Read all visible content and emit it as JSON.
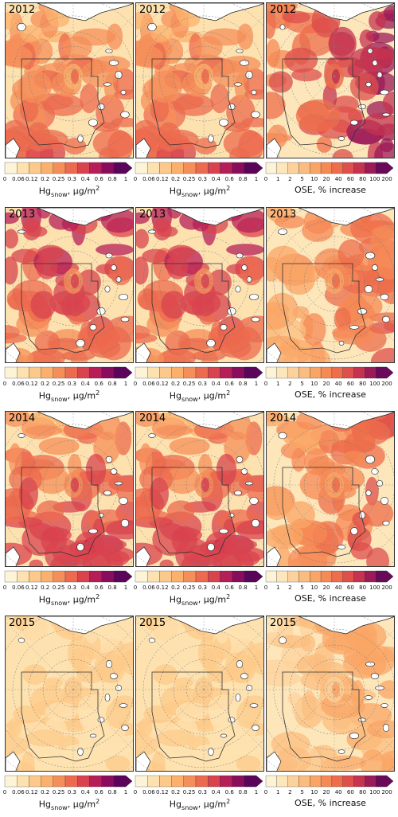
{
  "rows": [
    {
      "year": "2012",
      "panels": [
        {
          "kind": "hg",
          "intensity": 0.55,
          "tint": "south"
        },
        {
          "kind": "hg",
          "intensity": 0.55,
          "tint": "south"
        },
        {
          "kind": "ose",
          "intensity": 0.8,
          "tint": "east"
        }
      ]
    },
    {
      "year": "2013",
      "panels": [
        {
          "kind": "hg",
          "intensity": 0.7,
          "tint": "north"
        },
        {
          "kind": "hg",
          "intensity": 0.7,
          "tint": "north"
        },
        {
          "kind": "ose",
          "intensity": 0.55,
          "tint": "east"
        }
      ]
    },
    {
      "year": "2014",
      "panels": [
        {
          "kind": "hg",
          "intensity": 0.65,
          "tint": "south"
        },
        {
          "kind": "hg",
          "intensity": 0.65,
          "tint": "south"
        },
        {
          "kind": "ose",
          "intensity": 0.6,
          "tint": "east"
        }
      ]
    },
    {
      "year": "2015",
      "panels": [
        {
          "kind": "hg",
          "intensity": 0.25,
          "tint": "light"
        },
        {
          "kind": "hg",
          "intensity": 0.25,
          "tint": "light"
        },
        {
          "kind": "ose",
          "intensity": 0.35,
          "tint": "east"
        }
      ]
    }
  ],
  "hg_colorbar": {
    "ticks": [
      "0",
      "0.06",
      "0.12",
      "0.2",
      "0.25",
      "0.3",
      "0.4",
      "0.6",
      "0.8",
      "1"
    ],
    "colors": [
      "#fdf3d6",
      "#fde2b0",
      "#fcc98a",
      "#fbb06c",
      "#f58f5a",
      "#ec6a4e",
      "#d9434e",
      "#b51e57",
      "#8a0c5c",
      "#5a045a"
    ],
    "label_main": "Hg",
    "label_sub": "snow",
    "label_unit": ",  μg/m",
    "label_sup": "2"
  },
  "ose_colorbar": {
    "ticks": [
      "0",
      "1",
      "2",
      "5",
      "10",
      "20",
      "40",
      "60",
      "80",
      "100",
      "200"
    ],
    "colors": [
      "#fdf3d6",
      "#fde6ba",
      "#fcd29c",
      "#fbbd7f",
      "#f9a566",
      "#f58a55",
      "#ee6d4b",
      "#df4f4b",
      "#c5334f",
      "#9c1a57",
      "#6a0859"
    ],
    "label": "OSE, % increase"
  }
}
